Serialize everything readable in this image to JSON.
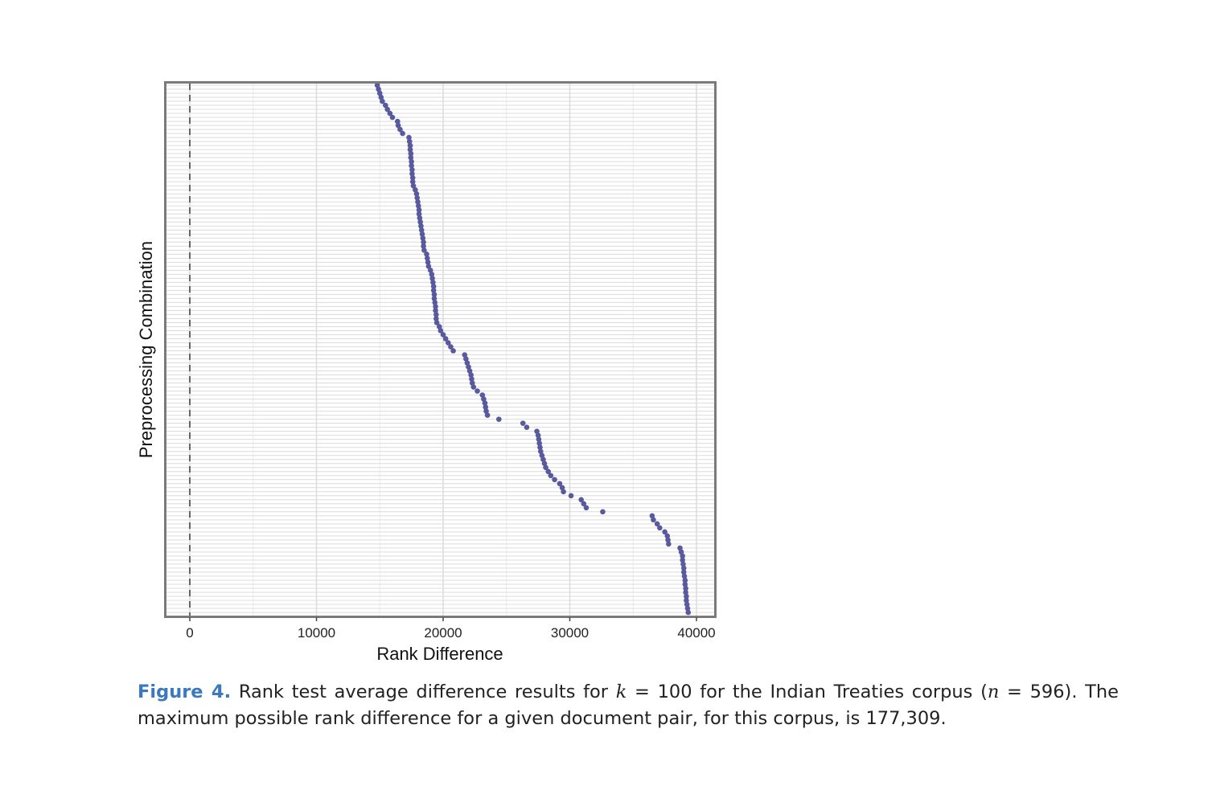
{
  "caption": {
    "label": "Figure 4.",
    "part1": " Rank test average difference results for ",
    "k_symbol": "k",
    "k_value": " = 100 for the Indian Treaties corpus (",
    "n_symbol": "n",
    "n_value": " = 596). The maximum possible rank difference for a given document pair, for this corpus, is 177,309."
  },
  "colors": {
    "point": "#59599e",
    "frame": "#7a7a7a",
    "grid_major": "#dcdcdc",
    "grid_minor": "#ececec",
    "zero_line": "#666666"
  },
  "chart_data": {
    "type": "scatter",
    "title": "",
    "xlabel": "Rank Difference",
    "ylabel": "Preprocessing Combination",
    "xlim": [
      -2000,
      41500
    ],
    "x_ticks": [
      0,
      10000,
      20000,
      30000,
      40000
    ],
    "x_tick_labels": [
      "0",
      "10000",
      "20000",
      "30000",
      "40000"
    ],
    "y_ticks_shown": false,
    "grid": true,
    "reference_line_x": 0,
    "values": [
      14800,
      14900,
      15000,
      15100,
      15200,
      15450,
      15600,
      15800,
      16000,
      16400,
      16450,
      16600,
      16800,
      17300,
      17350,
      17400,
      17400,
      17450,
      17450,
      17500,
      17500,
      17550,
      17550,
      17600,
      17600,
      17650,
      17800,
      17900,
      17950,
      18000,
      18050,
      18100,
      18100,
      18150,
      18200,
      18250,
      18300,
      18350,
      18400,
      18450,
      18450,
      18500,
      18700,
      18750,
      18800,
      18850,
      19000,
      19100,
      19150,
      19200,
      19250,
      19250,
      19300,
      19300,
      19350,
      19400,
      19400,
      19450,
      19450,
      19500,
      19700,
      19800,
      20000,
      20200,
      20400,
      20600,
      20800,
      21700,
      21800,
      21900,
      22000,
      22100,
      22200,
      22250,
      22300,
      22400,
      22700,
      23100,
      23200,
      23300,
      23350,
      23400,
      23500,
      24400,
      26300,
      26600,
      27400,
      27500,
      27550,
      27600,
      27650,
      27700,
      27800,
      27900,
      28000,
      28100,
      28300,
      28500,
      28800,
      29200,
      29400,
      29500,
      30100,
      30900,
      31100,
      31300,
      32600,
      36500,
      36600,
      36900,
      37100,
      37500,
      37700,
      37750,
      37800,
      38700,
      38800,
      38900,
      38900,
      38950,
      39000,
      39000,
      39050,
      39100,
      39100,
      39150,
      39150,
      39200,
      39200,
      39250,
      39300,
      39350
    ]
  }
}
